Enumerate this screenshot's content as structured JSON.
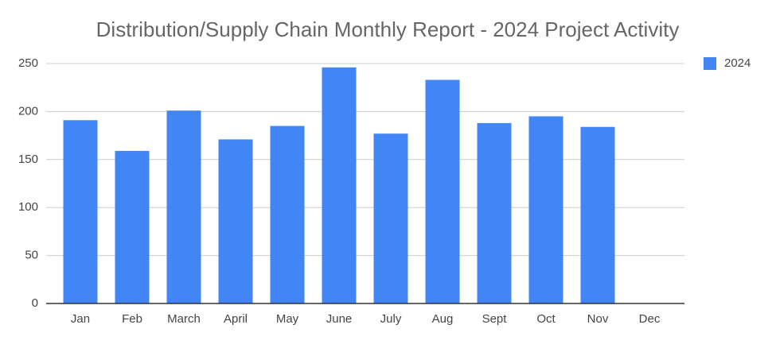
{
  "chart_data": {
    "type": "bar",
    "title": "Distribution/Supply Chain Monthly Report - 2024 Project Activity",
    "categories": [
      "Jan",
      "Feb",
      "March",
      "April",
      "May",
      "June",
      "July",
      "Aug",
      "Sept",
      "Oct",
      "Nov",
      "Dec"
    ],
    "series": [
      {
        "name": "2024",
        "color": "#4285f4",
        "values": [
          191,
          159,
          201,
          171,
          185,
          246,
          177,
          233,
          188,
          195,
          184,
          null
        ]
      }
    ],
    "ylim": [
      0,
      250
    ],
    "yticks": [
      0,
      50,
      100,
      150,
      200,
      250
    ],
    "grid": true,
    "legend": "right"
  }
}
